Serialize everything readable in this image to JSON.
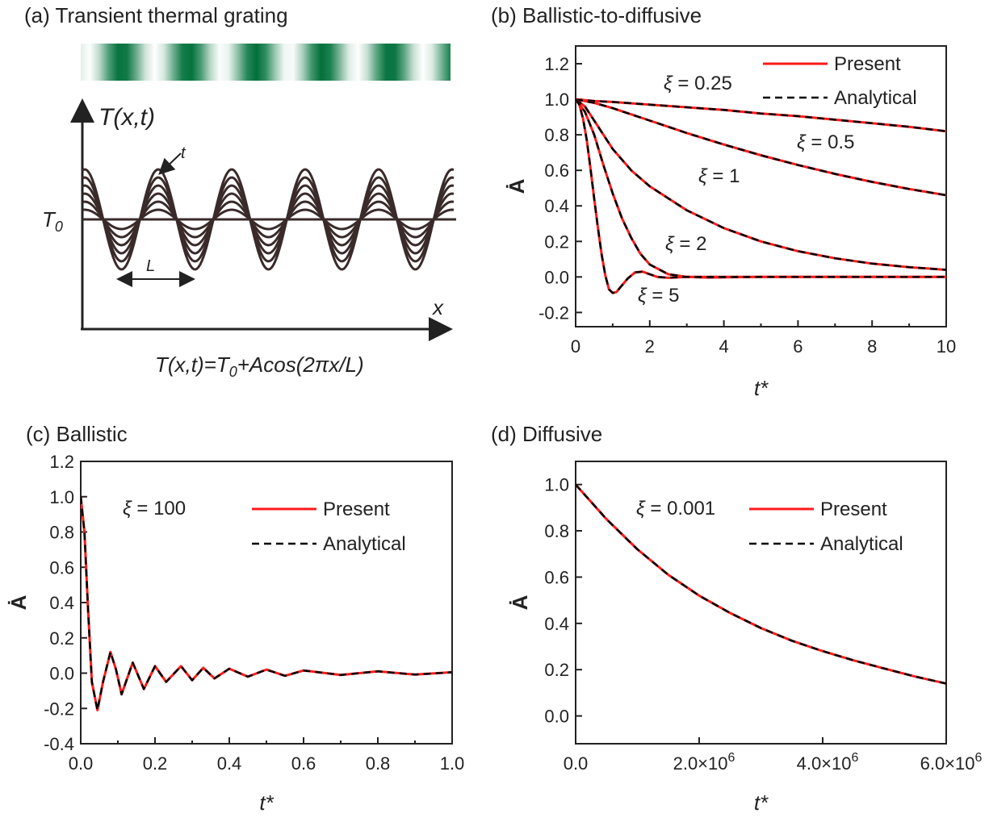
{
  "panels": {
    "a": {
      "title": "(a) Transient thermal grating",
      "y_label": "T(x,t)",
      "x_label": "x",
      "t0_label": "T",
      "t0_sub": "0",
      "t_label": "t",
      "L_label": "L",
      "formula_parts": [
        "T(x,t)=T",
        "0",
        "+Acos(2πx/L)"
      ],
      "grating_colors": {
        "dark": "#00703a",
        "light": "#ffffff"
      }
    },
    "b": {
      "title": "(b) Ballistic-to-diffusive"
    },
    "c": {
      "title": "(c) Ballistic"
    },
    "d": {
      "title": "(d) Diffusive"
    }
  },
  "colors": {
    "present": "#ff1a1a",
    "analytical": "#000000",
    "curves_a": "#3a2b2b"
  },
  "chart_data": [
    {
      "panel": "b",
      "type": "line",
      "xlabel": "t*",
      "ylabel": "Ȧ",
      "xlim": [
        0,
        10
      ],
      "ylim": [
        -0.28,
        1.3
      ],
      "xticks": [
        0,
        2,
        4,
        6,
        8,
        10
      ],
      "xtick_labels": [
        "0",
        "2",
        "4",
        "6",
        "8",
        "10"
      ],
      "yticks": [
        -0.2,
        0.0,
        0.2,
        0.4,
        0.6,
        0.8,
        1.0,
        1.2
      ],
      "ytick_labels": [
        "-0.2",
        "0.0",
        "0.2",
        "0.4",
        "0.6",
        "0.8",
        "1.0",
        "1.2"
      ],
      "legend": [
        "Present",
        "Analytical"
      ],
      "legend_position": "top-right",
      "series": [
        {
          "label": "ξ = 0.25",
          "x": [
            0,
            0.5,
            1,
            2,
            3,
            4,
            5,
            6,
            7,
            8,
            9,
            10
          ],
          "y": [
            1.0,
            0.99,
            0.985,
            0.97,
            0.955,
            0.94,
            0.92,
            0.905,
            0.885,
            0.865,
            0.845,
            0.82
          ]
        },
        {
          "label": "ξ = 0.5",
          "x": [
            0,
            0.5,
            1,
            1.5,
            2,
            3,
            4,
            5,
            6,
            7,
            8,
            9,
            10
          ],
          "y": [
            1.0,
            0.98,
            0.95,
            0.915,
            0.88,
            0.81,
            0.745,
            0.685,
            0.63,
            0.58,
            0.535,
            0.495,
            0.46
          ]
        },
        {
          "label": "ξ = 1",
          "x": [
            0,
            0.25,
            0.5,
            1,
            1.5,
            2,
            3,
            4,
            5,
            6,
            7,
            8,
            9,
            10
          ],
          "y": [
            1.0,
            0.96,
            0.88,
            0.72,
            0.6,
            0.51,
            0.375,
            0.275,
            0.2,
            0.145,
            0.105,
            0.075,
            0.055,
            0.04
          ]
        },
        {
          "label": "ξ = 2",
          "x": [
            0,
            0.25,
            0.5,
            0.75,
            1,
            1.25,
            1.5,
            1.75,
            2,
            2.5,
            3,
            3.5,
            4,
            5,
            6,
            8,
            10
          ],
          "y": [
            1.0,
            0.93,
            0.8,
            0.63,
            0.47,
            0.33,
            0.22,
            0.13,
            0.07,
            0.015,
            0.0,
            -0.003,
            -0.002,
            0.0,
            0.0,
            0.0,
            0.0
          ]
        },
        {
          "label": "ξ = 5",
          "x": [
            0,
            0.1,
            0.2,
            0.3,
            0.4,
            0.5,
            0.6,
            0.7,
            0.8,
            0.9,
            1.0,
            1.1,
            1.2,
            1.4,
            1.6,
            1.8,
            2.0,
            2.2,
            2.5,
            3.0,
            4,
            6,
            8,
            10
          ],
          "y": [
            1.0,
            0.97,
            0.89,
            0.77,
            0.61,
            0.44,
            0.28,
            0.13,
            0.01,
            -0.07,
            -0.09,
            -0.085,
            -0.06,
            -0.01,
            0.025,
            0.03,
            0.015,
            0.0,
            -0.005,
            0.0,
            0.0,
            0.0,
            0.0,
            0.0
          ]
        }
      ]
    },
    {
      "panel": "c",
      "type": "line",
      "xlabel": "t*",
      "ylabel": "Ȧ",
      "xlim": [
        0,
        1.0
      ],
      "ylim": [
        -0.4,
        1.2
      ],
      "xticks": [
        0,
        0.2,
        0.4,
        0.6,
        0.8,
        1.0
      ],
      "xtick_labels": [
        "0.0",
        "0.2",
        "0.4",
        "0.6",
        "0.8",
        "1.0"
      ],
      "yticks": [
        -0.4,
        -0.2,
        0.0,
        0.2,
        0.4,
        0.6,
        0.8,
        1.0,
        1.2
      ],
      "ytick_labels": [
        "-0.4",
        "-0.2",
        "0.0",
        "0.2",
        "0.4",
        "0.6",
        "0.8",
        "1.0",
        "1.2"
      ],
      "annotation": "ξ = 100",
      "legend": [
        "Present",
        "Analytical"
      ],
      "legend_position": "top-right",
      "series": [
        {
          "label": "ξ = 100",
          "x": [
            0,
            0.01,
            0.02,
            0.03,
            0.045,
            0.06,
            0.08,
            0.095,
            0.11,
            0.14,
            0.17,
            0.2,
            0.23,
            0.27,
            0.3,
            0.33,
            0.36,
            0.4,
            0.45,
            0.5,
            0.55,
            0.6,
            0.7,
            0.8,
            0.9,
            1.0
          ],
          "y": [
            1.0,
            0.8,
            0.35,
            -0.05,
            -0.21,
            -0.05,
            0.12,
            0.02,
            -0.12,
            0.06,
            -0.09,
            0.04,
            -0.05,
            0.04,
            -0.04,
            0.03,
            -0.03,
            0.025,
            -0.02,
            0.02,
            -0.015,
            0.015,
            -0.01,
            0.01,
            -0.008,
            0.005
          ]
        }
      ]
    },
    {
      "panel": "d",
      "type": "line",
      "xlabel": "t*",
      "ylabel": "Ȧ",
      "xlim": [
        0,
        6000000
      ],
      "ylim": [
        -0.12,
        1.1
      ],
      "xticks": [
        0,
        2000000,
        4000000,
        6000000
      ],
      "xtick_labels": [
        "0.0",
        "2.0×10",
        "4.0×10",
        "6.0×10"
      ],
      "xtick_exp": [
        "",
        "6",
        "6",
        "6"
      ],
      "yticks": [
        0.0,
        0.2,
        0.4,
        0.6,
        0.8,
        1.0
      ],
      "ytick_labels": [
        "0.0",
        "0.2",
        "0.4",
        "0.6",
        "0.8",
        "1.0"
      ],
      "annotation": "ξ = 0.001",
      "legend": [
        "Present",
        "Analytical"
      ],
      "legend_position": "top-right",
      "series": [
        {
          "label": "ξ = 0.001",
          "x": [
            0,
            500000,
            1000000,
            1500000,
            2000000,
            2500000,
            3000000,
            3500000,
            4000000,
            4500000,
            5000000,
            5500000,
            6000000
          ],
          "y": [
            1.0,
            0.85,
            0.72,
            0.61,
            0.52,
            0.445,
            0.38,
            0.325,
            0.28,
            0.24,
            0.205,
            0.17,
            0.14
          ]
        }
      ]
    }
  ]
}
